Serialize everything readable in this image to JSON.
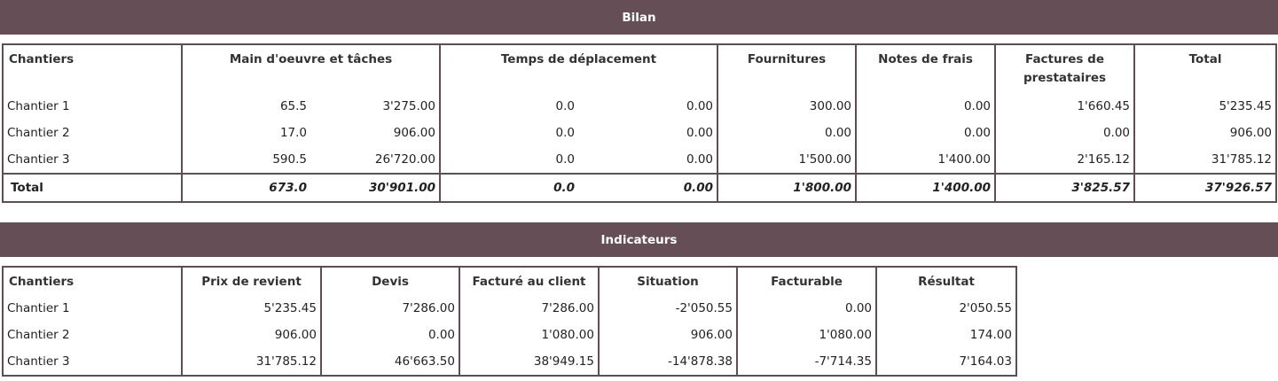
{
  "bilan": {
    "title": "Bilan",
    "headers": [
      "Chantiers",
      "Main d'oeuvre et tâches",
      "Temps de déplacement",
      "Fournitures",
      "Notes de frais",
      "Factures de prestataires",
      "Total"
    ],
    "rows": [
      {
        "name": "Chantier 1",
        "mo_h": "65.5",
        "mo_v": "3'275.00",
        "td_h": "0.0",
        "td_v": "0.00",
        "fourn": "300.00",
        "notes": "0.00",
        "fact": "1'660.45",
        "total": "5'235.45"
      },
      {
        "name": "Chantier 2",
        "mo_h": "17.0",
        "mo_v": "906.00",
        "td_h": "0.0",
        "td_v": "0.00",
        "fourn": "0.00",
        "notes": "0.00",
        "fact": "0.00",
        "total": "906.00"
      },
      {
        "name": "Chantier 3",
        "mo_h": "590.5",
        "mo_v": "26'720.00",
        "td_h": "0.0",
        "td_v": "0.00",
        "fourn": "1'500.00",
        "notes": "1'400.00",
        "fact": "2'165.12",
        "total": "31'785.12"
      }
    ],
    "total": {
      "name": "Total",
      "mo_h": "673.0",
      "mo_v": "30'901.00",
      "td_h": "0.0",
      "td_v": "0.00",
      "fourn": "1'800.00",
      "notes": "1'400.00",
      "fact": "3'825.57",
      "total": "37'926.57"
    }
  },
  "indicateurs": {
    "title": "Indicateurs",
    "headers": [
      "Chantiers",
      "Prix de revient",
      "Devis",
      "Facturé au client",
      "Situation",
      "Facturable",
      "Résultat"
    ],
    "rows": [
      {
        "name": "Chantier 1",
        "prix": "5'235.45",
        "devis": "7'286.00",
        "facture": "7'286.00",
        "situation": "-2'050.55",
        "facturable": "0.00",
        "resultat": "2'050.55"
      },
      {
        "name": "Chantier 2",
        "prix": "906.00",
        "devis": "0.00",
        "facture": "1'080.00",
        "situation": "906.00",
        "facturable": "1'080.00",
        "resultat": "174.00"
      },
      {
        "name": "Chantier 3",
        "prix": "31'785.12",
        "devis": "46'663.50",
        "facture": "38'949.15",
        "situation": "-14'878.38",
        "facturable": "-7'714.35",
        "resultat": "7'164.03"
      }
    ]
  }
}
